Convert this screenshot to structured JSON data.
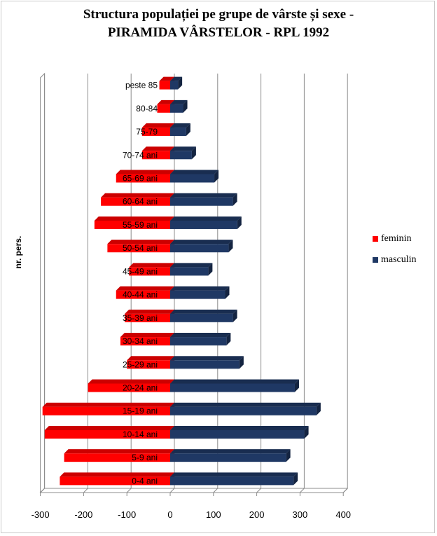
{
  "chart_data": {
    "type": "bar",
    "orientation": "horizontal",
    "title_line1": "Structura populației pe grupe de vârste și sexe -",
    "title_line2": "PIRAMIDA VÂRSTELOR - RPL 1992",
    "ylabel": "nr. pers.",
    "categories": [
      "0-4 ani",
      "5-9 ani",
      "10-14 ani",
      "15-19 ani",
      "20-24 ani",
      "25-29 ani",
      "30-34 ani",
      "35-39 ani",
      "40-44 ani",
      "45-49 ani",
      "50-54 ani",
      "55-59 ani",
      "60-64 ani",
      "65-69 ani",
      "70-74 ani",
      "75-79",
      "80-84",
      "peste 85"
    ],
    "series": [
      {
        "name": "feminin",
        "color": "#ff0000",
        "values": [
          -255,
          -245,
          -290,
          -295,
          -190,
          -100,
          -115,
          -105,
          -125,
          -95,
          -145,
          -175,
          -160,
          -125,
          -65,
          -65,
          -30,
          -25
        ]
      },
      {
        "name": "masculin",
        "color": "#1f3864",
        "values": [
          285,
          268,
          310,
          338,
          288,
          160,
          130,
          145,
          127,
          88,
          135,
          155,
          145,
          102,
          50,
          37,
          30,
          18
        ]
      }
    ],
    "xlim": [
      -300,
      400
    ],
    "xticks": [
      "-300",
      "-200",
      "-100",
      "0",
      "100",
      "200",
      "300",
      "400"
    ],
    "grid": true,
    "legend_position": "right"
  }
}
